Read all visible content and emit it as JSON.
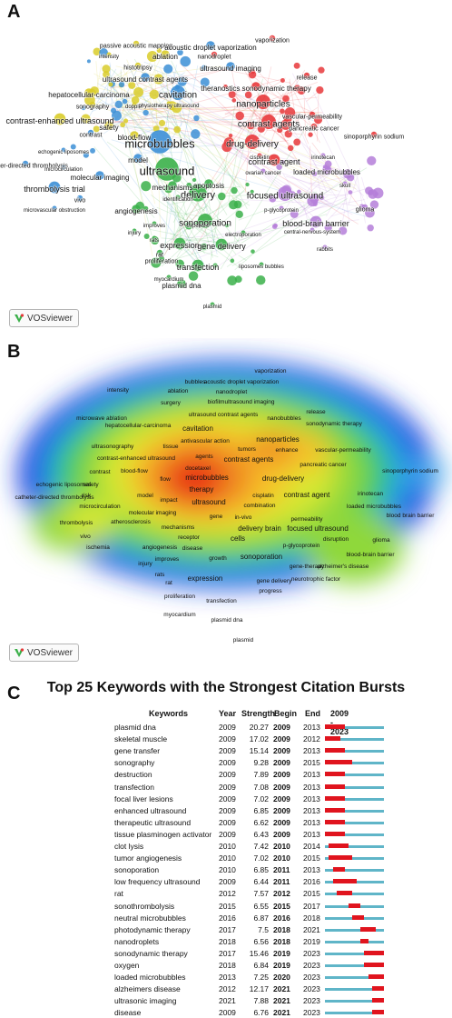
{
  "panel_a": {
    "letter": "A",
    "badge": "VOSviewer",
    "labels": [
      {
        "text": "vaporization",
        "c": "red",
        "s": 7
      },
      {
        "text": "passive acoustic mapping",
        "c": "yellow",
        "s": 7
      },
      {
        "text": "acoustic droplet vaporization",
        "c": "blue",
        "s": 8
      },
      {
        "text": "intensity",
        "c": "yellow",
        "s": 6
      },
      {
        "text": "nanodroplet",
        "c": "red",
        "s": 7
      },
      {
        "text": "ablation",
        "c": "yellow",
        "s": 8
      },
      {
        "text": "histotripsy",
        "c": "yellow",
        "s": 7
      },
      {
        "text": "ultrasound imaging",
        "c": "blue",
        "s": 8
      },
      {
        "text": "release",
        "c": "red",
        "s": 7
      },
      {
        "text": "ultrasound contrast agents",
        "c": "blue",
        "s": 8
      },
      {
        "text": "theranostics sonodynamic therapy",
        "c": "red",
        "s": 8
      },
      {
        "text": "hepatocellular-carcinoma",
        "c": "yellow",
        "s": 8
      },
      {
        "text": "cavitation",
        "c": "blue",
        "s": 10
      },
      {
        "text": "nanoparticles",
        "c": "red",
        "s": 10
      },
      {
        "text": "sonography",
        "c": "yellow",
        "s": 7
      },
      {
        "text": "doppler",
        "c": "yellow",
        "s": 6
      },
      {
        "text": "physiotherapy ultrasound",
        "c": "yellow",
        "s": 6
      },
      {
        "text": "vascular-permeability",
        "c": "red",
        "s": 7
      },
      {
        "text": "contrast-enhanced ultrasound",
        "c": "yellow",
        "s": 9
      },
      {
        "text": "contrast agents",
        "c": "red",
        "s": 10
      },
      {
        "text": "pancreatic cancer",
        "c": "red",
        "s": 7
      },
      {
        "text": "contrast",
        "c": "blue",
        "s": 7
      },
      {
        "text": "safety",
        "c": "yellow",
        "s": 8
      },
      {
        "text": "blood-flow",
        "c": "yellow",
        "s": 8
      },
      {
        "text": "microbubbles",
        "c": "blue",
        "s": 13
      },
      {
        "text": "drug-delivery",
        "c": "red",
        "s": 10
      },
      {
        "text": "sinoporphyrin sodium",
        "c": "red",
        "s": 7
      },
      {
        "text": "echogenic liposomes",
        "c": "blue",
        "s": 6
      },
      {
        "text": "cisplatin",
        "c": "red",
        "s": 6
      },
      {
        "text": "irinotecan",
        "c": "purple",
        "s": 6
      },
      {
        "text": "model",
        "c": "blue",
        "s": 8
      },
      {
        "text": "contrast agent",
        "c": "red",
        "s": 9
      },
      {
        "text": "catheter-directed thrombolysis",
        "c": "blue",
        "s": 7
      },
      {
        "text": "ultrasound",
        "c": "green",
        "s": 13
      },
      {
        "text": "microcirculation",
        "c": "blue",
        "s": 6
      },
      {
        "text": "ovarian cancer",
        "c": "purple",
        "s": 6
      },
      {
        "text": "loaded microbubbles",
        "c": "purple",
        "s": 8
      },
      {
        "text": "molecular imaging",
        "c": "blue",
        "s": 8
      },
      {
        "text": "thrombolysis trial",
        "c": "blue",
        "s": 9
      },
      {
        "text": "vivo",
        "c": "blue",
        "s": 7
      },
      {
        "text": "mechanisms",
        "c": "green",
        "s": 8
      },
      {
        "text": "apoptosis",
        "c": "green",
        "s": 8
      },
      {
        "text": "skull",
        "c": "purple",
        "s": 6
      },
      {
        "text": "microvascular obstruction",
        "c": "blue",
        "s": 6
      },
      {
        "text": "delivery",
        "c": "green",
        "s": 11
      },
      {
        "text": "focused ultrasound",
        "c": "purple",
        "s": 10
      },
      {
        "text": "identification",
        "c": "green",
        "s": 6
      },
      {
        "text": "p-glycoprotein",
        "c": "purple",
        "s": 6
      },
      {
        "text": "glioma",
        "c": "purple",
        "s": 7
      },
      {
        "text": "angiogenesis",
        "c": "green",
        "s": 8
      },
      {
        "text": "improves",
        "c": "green",
        "s": 6
      },
      {
        "text": "exposure",
        "c": "green",
        "s": 6
      },
      {
        "text": "sonoporation",
        "c": "green",
        "s": 10
      },
      {
        "text": "blood-brain barrier",
        "c": "purple",
        "s": 9
      },
      {
        "text": "injury",
        "c": "green",
        "s": 6
      },
      {
        "text": "electroporation",
        "c": "green",
        "s": 6
      },
      {
        "text": "central-nervous-system",
        "c": "purple",
        "s": 6
      },
      {
        "text": "rats",
        "c": "green",
        "s": 6
      },
      {
        "text": "expression",
        "c": "green",
        "s": 9
      },
      {
        "text": "gene delivery",
        "c": "green",
        "s": 9
      },
      {
        "text": "rabbits",
        "c": "purple",
        "s": 6
      },
      {
        "text": "rat",
        "c": "green",
        "s": 7
      },
      {
        "text": "proliferation",
        "c": "green",
        "s": 7
      },
      {
        "text": "liposomes bubbles",
        "c": "green",
        "s": 6
      },
      {
        "text": "transfection",
        "c": "green",
        "s": 9
      },
      {
        "text": "myocardium",
        "c": "green",
        "s": 6
      },
      {
        "text": "plasmid dna",
        "c": "green",
        "s": 8
      },
      {
        "text": "plasmid",
        "c": "green",
        "s": 6
      }
    ]
  },
  "panel_b": {
    "letter": "B",
    "badge": "VOSviewer",
    "labels": [
      "vaporization",
      "intensity",
      "bubbles",
      "acoustic droplet vaporization",
      "nanodroplet",
      "ablation",
      "surgery",
      "biofilm",
      "ultrasound imaging",
      "release",
      "ultrasound contrast agents",
      "nanobubbles",
      "microwave ablation",
      "sonodynamic therapy",
      "hepatocellular-carcinoma",
      "cavitation",
      "antivascular action",
      "nanoparticles",
      "ultrasonography",
      "tissue",
      "tumors",
      "enhance",
      "vascular-permeability",
      "contrast-enhanced ultrasound",
      "agents",
      "contrast agents",
      "pancreatic cancer",
      "docetaxel",
      "sinoporphyrin sodium",
      "contrast",
      "blood-flow",
      "flow",
      "microbubbles",
      "drug-delivery",
      "echogenic liposomes",
      "safety",
      "therapy",
      "catheter-directed thrombolysis",
      "risk",
      "model",
      "impact",
      "cisplatin",
      "contrast agent",
      "irinotecan",
      "microcirculation",
      "ultrasound",
      "combination",
      "loaded microbubbles",
      "molecular imaging",
      "gene",
      "in-vivo",
      "permeability",
      "thrombolysis",
      "atherosclerosis",
      "mechanisms",
      "delivery brain",
      "focused ultrasound",
      "blood brain barrier",
      "vivo",
      "receptor",
      "cells",
      "disruption",
      "glioma",
      "ischemia",
      "angiogenesis",
      "disease",
      "p-glycoprotein",
      "blood-brain barrier",
      "injury",
      "improves",
      "growth",
      "sonoporation",
      "gene-therapy",
      "alzheimer's disease",
      "rats",
      "expression",
      "rat",
      "gene delivery",
      "neurotrophic factor",
      "proliferation",
      "progress",
      "transfection",
      "myocardium",
      "plasmid dna",
      "plasmid"
    ]
  },
  "panel_c": {
    "letter": "C",
    "title": "Top 25 Keywords with the Strongest Citation Bursts",
    "headers": {
      "keywords": "Keywords",
      "year": "Year",
      "strength": "Strength",
      "begin": "Begin",
      "end": "End",
      "range": "2009 - 2023"
    },
    "chart_data": {
      "type": "table",
      "range_start": 2009,
      "range_end": 2023,
      "rows": [
        {
          "keyword": "plasmid dna",
          "year": "2009",
          "strength": "20.27",
          "begin": "2009",
          "end": "2013"
        },
        {
          "keyword": "skeletal muscle",
          "year": "2009",
          "strength": "17.02",
          "begin": "2009",
          "end": "2012"
        },
        {
          "keyword": "gene transfer",
          "year": "2009",
          "strength": "15.14",
          "begin": "2009",
          "end": "2013"
        },
        {
          "keyword": "sonography",
          "year": "2009",
          "strength": "9.28",
          "begin": "2009",
          "end": "2015"
        },
        {
          "keyword": "destruction",
          "year": "2009",
          "strength": "7.89",
          "begin": "2009",
          "end": "2013"
        },
        {
          "keyword": "transfection",
          "year": "2009",
          "strength": "7.08",
          "begin": "2009",
          "end": "2013"
        },
        {
          "keyword": "focal liver lesions",
          "year": "2009",
          "strength": "7.02",
          "begin": "2009",
          "end": "2013"
        },
        {
          "keyword": "enhanced ultrasound",
          "year": "2009",
          "strength": "6.85",
          "begin": "2009",
          "end": "2013"
        },
        {
          "keyword": "therapeutic ultrasound",
          "year": "2009",
          "strength": "6.62",
          "begin": "2009",
          "end": "2013"
        },
        {
          "keyword": "tissue plasminogen activator",
          "year": "2009",
          "strength": "6.43",
          "begin": "2009",
          "end": "2013"
        },
        {
          "keyword": "clot lysis",
          "year": "2010",
          "strength": "7.42",
          "begin": "2010",
          "end": "2014"
        },
        {
          "keyword": "tumor angiogenesis",
          "year": "2010",
          "strength": "7.02",
          "begin": "2010",
          "end": "2015"
        },
        {
          "keyword": "sonoporation",
          "year": "2010",
          "strength": "6.85",
          "begin": "2011",
          "end": "2013"
        },
        {
          "keyword": "low frequency ultrasound",
          "year": "2009",
          "strength": "6.44",
          "begin": "2011",
          "end": "2016"
        },
        {
          "keyword": "rat",
          "year": "2012",
          "strength": "7.57",
          "begin": "2012",
          "end": "2015"
        },
        {
          "keyword": "sonothrombolysis",
          "year": "2015",
          "strength": "6.55",
          "begin": "2015",
          "end": "2017"
        },
        {
          "keyword": "neutral microbubbles",
          "year": "2016",
          "strength": "6.87",
          "begin": "2016",
          "end": "2018"
        },
        {
          "keyword": "photodynamic therapy",
          "year": "2017",
          "strength": "7.5",
          "begin": "2018",
          "end": "2021"
        },
        {
          "keyword": "nanodroplets",
          "year": "2018",
          "strength": "6.56",
          "begin": "2018",
          "end": "2019"
        },
        {
          "keyword": "sonodynamic therapy",
          "year": "2017",
          "strength": "15.46",
          "begin": "2019",
          "end": "2023"
        },
        {
          "keyword": "oxygen",
          "year": "2018",
          "strength": "6.84",
          "begin": "2019",
          "end": "2023"
        },
        {
          "keyword": "loaded microbubbles",
          "year": "2013",
          "strength": "7.25",
          "begin": "2020",
          "end": "2023"
        },
        {
          "keyword": "alzheimers disease",
          "year": "2012",
          "strength": "12.17",
          "begin": "2021",
          "end": "2023"
        },
        {
          "keyword": "ultrasonic imaging",
          "year": "2021",
          "strength": "7.88",
          "begin": "2021",
          "end": "2023"
        },
        {
          "keyword": "disease",
          "year": "2009",
          "strength": "6.76",
          "begin": "2021",
          "end": "2023"
        }
      ]
    }
  },
  "colors": {
    "red": "#e8383b",
    "blue": "#3c8fd6",
    "green": "#3bb04a",
    "yellow": "#d9cc2a",
    "purple": "#b57fd9",
    "burst": "#e0141e",
    "timeline": "#5fb5c8"
  }
}
